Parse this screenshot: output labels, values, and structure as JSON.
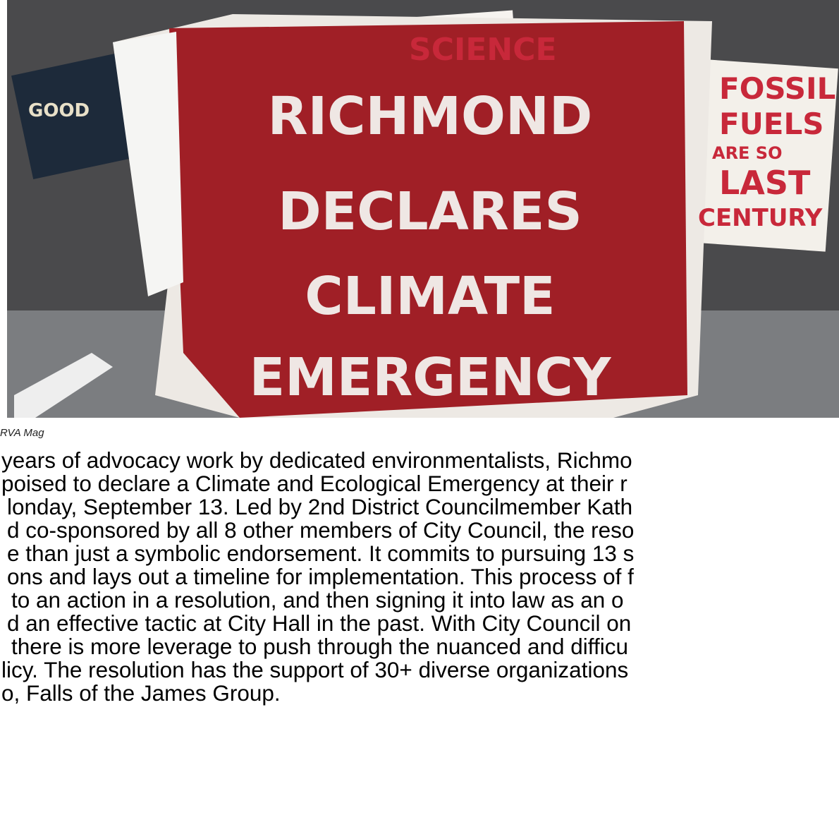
{
  "photo": {
    "banner": [
      "RICHMOND",
      "DECLARES",
      "CLIMATE",
      "EMERGENCY"
    ],
    "signs": [
      "SCIENCE",
      "FOSSIL",
      "FUELS",
      "ARE SO",
      "LAST",
      "CENTURY",
      "GOOD"
    ]
  },
  "caption": "RVA Mag",
  "paragraph": [
    "years of advocacy work by dedicated environmentalists, Richmo",
    "poised to declare a Climate and Ecological Emergency at their r",
    "londay, September 13. Led by 2nd District Councilmember Kath",
    "d co-sponsored by all 8 other members of City Council, the reso",
    "e than just a symbolic endorsement. It commits to pursuing 13 s",
    "ons and lays out a timeline for implementation. This process of f",
    "to an action in a resolution, and then signing it into law as an o",
    "d an effective tactic at City Hall in the past. With City Council on",
    "there is more leverage to push through the nuanced and difficu",
    "licy. The resolution has the support of 30+ diverse organizations",
    "o, Falls of the James Group."
  ]
}
